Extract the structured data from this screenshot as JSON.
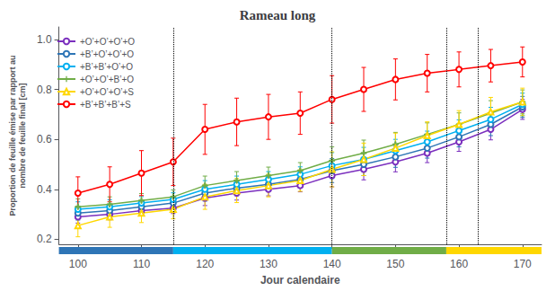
{
  "chart_data": {
    "type": "line",
    "title": "Rameau long",
    "xlabel": "Jour calendaire",
    "ylabel": "Proportion de feuille émise par rapport au\nnombre de feuille final [cm]",
    "x": [
      100,
      105,
      110,
      115,
      120,
      125,
      130,
      135,
      140,
      145,
      150,
      155,
      160,
      165,
      170
    ],
    "series": [
      {
        "name": "+O’+O’+O’+O",
        "color": "#7B2FBE",
        "marker": "circle",
        "values": [
          0.29,
          0.3,
          0.315,
          0.325,
          0.365,
          0.385,
          0.4,
          0.415,
          0.455,
          0.48,
          0.51,
          0.545,
          0.59,
          0.64,
          0.72
        ],
        "errors": [
          0.025,
          0.022,
          0.02,
          0.022,
          0.03,
          0.028,
          0.026,
          0.025,
          0.045,
          0.042,
          0.04,
          0.038,
          0.038,
          0.042,
          0.04
        ]
      },
      {
        "name": "+B’+O’+O’+O",
        "color": "#2E75B6",
        "marker": "circle",
        "values": [
          0.305,
          0.315,
          0.33,
          0.345,
          0.385,
          0.405,
          0.42,
          0.44,
          0.475,
          0.5,
          0.53,
          0.565,
          0.61,
          0.66,
          0.73
        ],
        "errors": [
          0.028,
          0.025,
          0.023,
          0.024,
          0.032,
          0.03,
          0.028,
          0.026,
          0.048,
          0.045,
          0.042,
          0.04,
          0.04,
          0.045,
          0.042
        ]
      },
      {
        "name": "+B’+B’+O’+O",
        "color": "#00B0F0",
        "marker": "circle",
        "values": [
          0.32,
          0.33,
          0.345,
          0.36,
          0.4,
          0.42,
          0.44,
          0.46,
          0.495,
          0.52,
          0.555,
          0.59,
          0.635,
          0.68,
          0.74
        ],
        "errors": [
          0.03,
          0.028,
          0.026,
          0.026,
          0.035,
          0.033,
          0.031,
          0.03,
          0.052,
          0.048,
          0.045,
          0.043,
          0.043,
          0.048,
          0.045
        ]
      },
      {
        "name": "+O’+O’+B’+O",
        "color": "#70AD47",
        "marker": "plus",
        "values": [
          0.33,
          0.34,
          0.355,
          0.37,
          0.415,
          0.435,
          0.455,
          0.475,
          0.515,
          0.545,
          0.58,
          0.62,
          0.66,
          0.705,
          0.75
        ],
        "errors": [
          0.032,
          0.03,
          0.028,
          0.028,
          0.038,
          0.036,
          0.034,
          0.032,
          0.055,
          0.052,
          0.048,
          0.046,
          0.046,
          0.05,
          0.048
        ]
      },
      {
        "name": "+O’+O’+O’+S",
        "color": "#FFD700",
        "marker": "triangle",
        "values": [
          0.255,
          0.29,
          0.305,
          0.32,
          0.37,
          0.395,
          0.415,
          0.435,
          0.48,
          0.52,
          0.565,
          0.615,
          0.66,
          0.71,
          0.75
        ],
        "errors": [
          0.045,
          0.042,
          0.038,
          0.038,
          0.05,
          0.048,
          0.045,
          0.043,
          0.07,
          0.065,
          0.06,
          0.055,
          0.055,
          0.058,
          0.055
        ]
      },
      {
        "name": "+B’+B’+B’+S",
        "color": "#FF0000",
        "marker": "circle",
        "values": [
          0.385,
          0.42,
          0.465,
          0.51,
          0.64,
          0.67,
          0.69,
          0.705,
          0.76,
          0.8,
          0.84,
          0.865,
          0.88,
          0.895,
          0.91
        ],
        "errors": [
          0.065,
          0.07,
          0.09,
          0.095,
          0.1,
          0.095,
          0.09,
          0.085,
          0.095,
          0.088,
          0.082,
          0.075,
          0.07,
          0.065,
          0.06
        ]
      }
    ],
    "vlines": {
      "values": [
        115,
        140,
        158,
        163
      ],
      "color": "#000000"
    },
    "bands": [
      {
        "xmin": 97,
        "xmax": 115,
        "color": "#2E75B6"
      },
      {
        "xmin": 115,
        "xmax": 140,
        "color": "#00B0F0"
      },
      {
        "xmin": 140,
        "xmax": 158,
        "color": "#70AD47"
      },
      {
        "xmin": 158,
        "xmax": 173,
        "color": "#FFD700"
      }
    ],
    "xlim": [
      97,
      173
    ],
    "ylim": [
      0.18,
      1.05
    ],
    "xticks": [
      100,
      110,
      120,
      130,
      140,
      150,
      160,
      170
    ],
    "yticks": [
      0.2,
      0.4,
      0.6,
      0.8,
      {
        "value": 1,
        "label": "1.0"
      }
    ],
    "grid": false,
    "legend": "upper left"
  }
}
